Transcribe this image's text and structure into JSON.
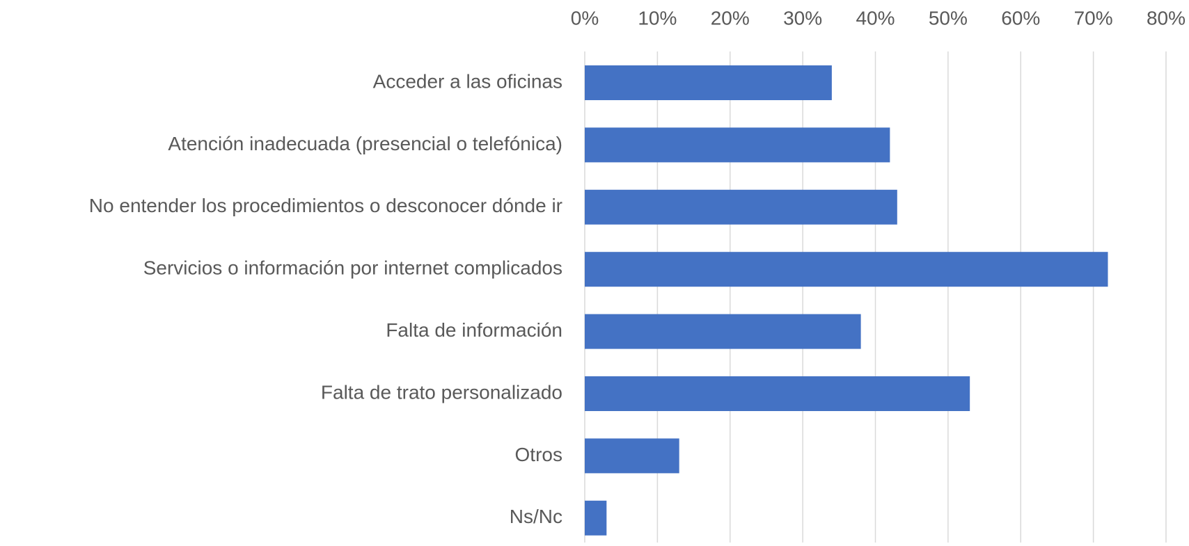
{
  "chart_data": {
    "type": "bar",
    "orientation": "horizontal",
    "categories": [
      "Acceder a las oficinas",
      "Atención inadecuada (presencial o telefónica)",
      "No entender los procedimientos o desconocer dónde ir",
      "Servicios o información por internet complicados",
      "Falta de información",
      "Falta de trato personalizado",
      "Otros",
      "Ns/Nc"
    ],
    "values": [
      34,
      42,
      43,
      72,
      38,
      53,
      13,
      3
    ],
    "color": "#4472c4",
    "xlim": [
      0,
      80
    ],
    "xticks": [
      {
        "value": 0,
        "label": "0%"
      },
      {
        "value": 10,
        "label": "10%"
      },
      {
        "value": 20,
        "label": "20%"
      },
      {
        "value": 30,
        "label": "30%"
      },
      {
        "value": 40,
        "label": "40%"
      },
      {
        "value": 50,
        "label": "50%"
      },
      {
        "value": 60,
        "label": "60%"
      },
      {
        "value": 70,
        "label": "70%"
      },
      {
        "value": 80,
        "label": "80%"
      }
    ],
    "grid": true
  }
}
